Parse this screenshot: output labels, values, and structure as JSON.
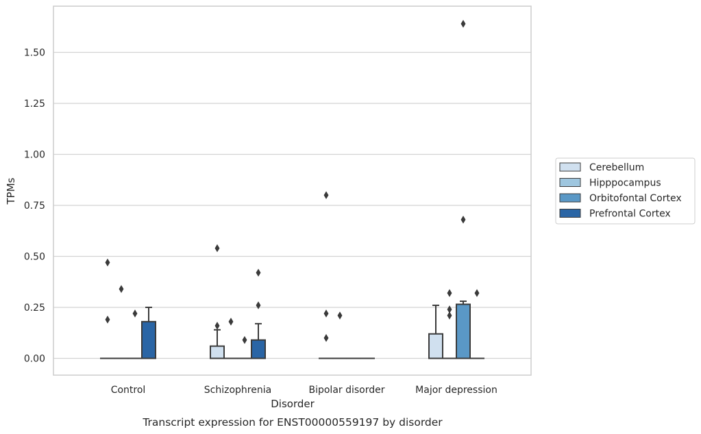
{
  "chart_data": {
    "type": "box",
    "caption": "Transcript expression for ENST00000559197 by disorder",
    "xlabel": "Disorder",
    "ylabel": "TPMs",
    "ylim": [
      -0.08,
      1.7
    ],
    "yticks": [
      0.0,
      0.25,
      0.5,
      0.75,
      1.0,
      1.25,
      1.5
    ],
    "ytick_labels": [
      "0.00",
      "0.25",
      "0.50",
      "0.75",
      "1.00",
      "1.25",
      "1.50"
    ],
    "grid": "horizontal",
    "legend_position": "right",
    "categories": [
      "Control",
      "Schizophrenia",
      "Bipolar disorder",
      "Major depression"
    ],
    "series": [
      {
        "name": "Cerebellum",
        "color": "#d0e0ef",
        "boxes": [
          {
            "q1": 0,
            "median": 0,
            "q3": 0,
            "whisker_low": 0,
            "whisker_high": 0,
            "outliers": [
              0.47,
              0.19
            ]
          },
          {
            "q1": 0,
            "median": 0,
            "q3": 0.06,
            "whisker_low": 0,
            "whisker_high": 0.14,
            "outliers": [
              0.54,
              0.16
            ]
          },
          {
            "q1": 0,
            "median": 0,
            "q3": 0,
            "whisker_low": 0,
            "whisker_high": 0,
            "outliers": [
              0.8,
              0.22,
              0.1
            ]
          },
          {
            "q1": 0,
            "median": 0,
            "q3": 0.12,
            "whisker_low": 0,
            "whisker_high": 0.26,
            "outliers": []
          }
        ]
      },
      {
        "name": "Hipppocampus",
        "color": "#9ec6df",
        "boxes": [
          {
            "q1": 0,
            "median": 0,
            "q3": 0,
            "whisker_low": 0,
            "whisker_high": 0,
            "outliers": [
              0.34
            ]
          },
          {
            "q1": 0,
            "median": 0,
            "q3": 0,
            "whisker_low": 0,
            "whisker_high": 0,
            "outliers": [
              0.18
            ]
          },
          {
            "q1": 0,
            "median": 0,
            "q3": 0,
            "whisker_low": 0,
            "whisker_high": 0,
            "outliers": [
              0.21
            ]
          },
          {
            "q1": 0,
            "median": 0,
            "q3": 0,
            "whisker_low": 0,
            "whisker_high": 0,
            "outliers": [
              0.32,
              0.24,
              0.21
            ]
          }
        ]
      },
      {
        "name": "Orbitofontal Cortex",
        "color": "#5a98c6",
        "boxes": [
          {
            "q1": 0,
            "median": 0,
            "q3": 0,
            "whisker_low": 0,
            "whisker_high": 0,
            "outliers": [
              0.22
            ]
          },
          {
            "q1": 0,
            "median": 0,
            "q3": 0,
            "whisker_low": 0,
            "whisker_high": 0,
            "outliers": [
              0.09
            ]
          },
          {
            "q1": 0,
            "median": 0,
            "q3": 0,
            "whisker_low": 0,
            "whisker_high": 0,
            "outliers": []
          },
          {
            "q1": 0,
            "median": 0,
            "q3": 0.265,
            "whisker_low": 0,
            "whisker_high": 0.28,
            "outliers": [
              1.64,
              0.68
            ]
          }
        ]
      },
      {
        "name": "Prefrontal Cortex",
        "color": "#2a65a5",
        "boxes": [
          {
            "q1": 0,
            "median": 0,
            "q3": 0.18,
            "whisker_low": 0,
            "whisker_high": 0.25,
            "outliers": []
          },
          {
            "q1": 0,
            "median": 0,
            "q3": 0.09,
            "whisker_low": 0,
            "whisker_high": 0.17,
            "outliers": [
              0.42,
              0.26
            ]
          },
          {
            "q1": 0,
            "median": 0,
            "q3": 0,
            "whisker_low": 0,
            "whisker_high": 0,
            "outliers": []
          },
          {
            "q1": 0,
            "median": 0,
            "q3": 0,
            "whisker_low": 0,
            "whisker_high": 0,
            "outliers": [
              0.32
            ]
          }
        ]
      }
    ]
  }
}
